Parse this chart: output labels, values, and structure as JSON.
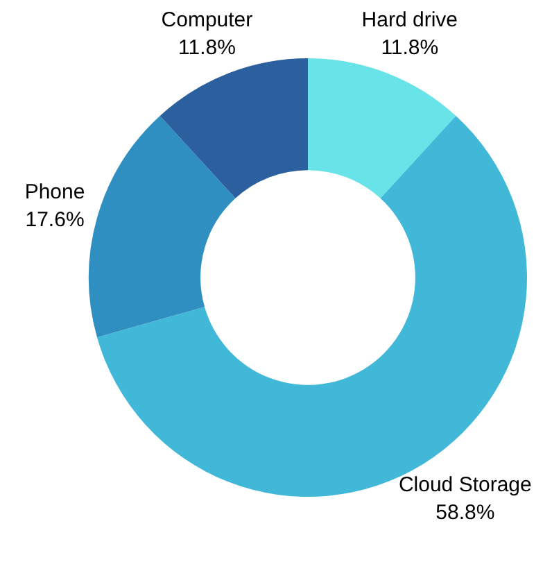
{
  "chart_data": {
    "type": "donut",
    "categories": [
      "Hard drive",
      "Cloud Storage",
      "Phone",
      "Computer"
    ],
    "values": [
      11.8,
      58.8,
      17.6,
      11.8
    ],
    "value_labels": [
      "11.8%",
      "58.8%",
      "17.6%",
      "11.8%"
    ],
    "colors": [
      "#68e4e8",
      "#41b8d8",
      "#2f8fc0",
      "#2c5f9e"
    ],
    "legend": false
  }
}
